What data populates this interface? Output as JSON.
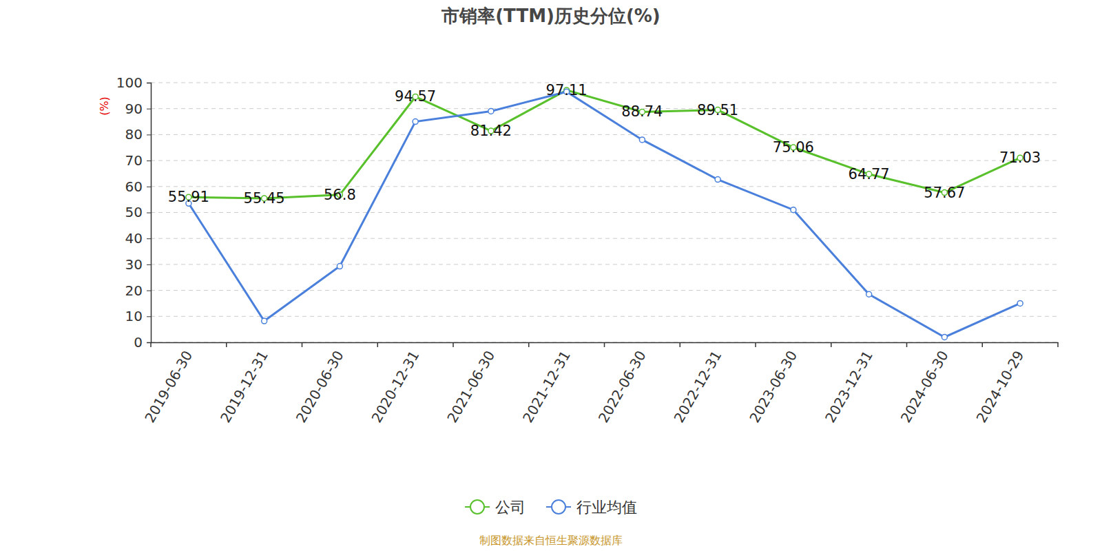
{
  "chart_data": {
    "type": "line",
    "title": "市销率(TTM)历史分位(%)",
    "y_label": "(%)",
    "annotations": [
      "制图数据来自恒生聚源数据库"
    ],
    "categories": [
      "2019-06-30",
      "2019-12-31",
      "2020-06-30",
      "2020-12-31",
      "2021-06-30",
      "2021-12-31",
      "2022-06-30",
      "2022-12-31",
      "2023-06-30",
      "2023-12-31",
      "2024-06-30",
      "2024-10-29"
    ],
    "series": [
      {
        "name": "公司",
        "color": "#58c02a",
        "marker": "circle",
        "data_labels": true,
        "values": [
          55.91,
          55.45,
          56.8,
          94.57,
          81.42,
          97.11,
          88.74,
          89.51,
          75.06,
          64.77,
          57.67,
          71.03
        ]
      },
      {
        "name": "行业均值",
        "color": "#4a80dc",
        "marker": "circle",
        "values": [
          53.5,
          8.2,
          29.3,
          85.0,
          89.0,
          96.5,
          78.0,
          62.7,
          51.0,
          18.5,
          2.0,
          15.0
        ]
      }
    ],
    "ylim": [
      0,
      100
    ],
    "yticks": [
      0,
      10,
      20,
      30,
      40,
      50,
      60,
      70,
      80,
      90,
      100
    ],
    "grid": true,
    "legend": "bottom"
  }
}
